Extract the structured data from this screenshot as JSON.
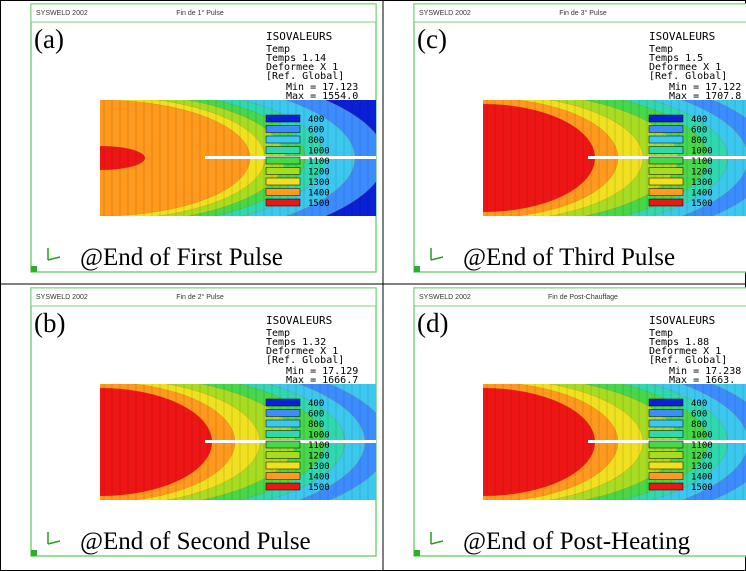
{
  "header_logo": "SYSWELD 2002",
  "isovaleurs": "ISOVALEURS",
  "quantity": "Temp",
  "deformee": "Deformee X 1",
  "reference": "[Ref. Global]",
  "legend_levels": [
    "400",
    "600",
    "800",
    "1000",
    "1100",
    "1200",
    "1300",
    "1400",
    "1500"
  ],
  "panels": [
    {
      "label": "(a)",
      "title": "Fin de 1° Pulse",
      "time": "Temps 1.14",
      "min": "Min = 17.123",
      "max": "Max = 1554.0",
      "caption": "@End of First Pulse"
    },
    {
      "label": "(c)",
      "title": "Fin de 3° Pulse",
      "time": "Temps 1.5",
      "min": "Min = 17.122",
      "max": "Max = 1707.8",
      "caption": "@End of Third Pulse"
    },
    {
      "label": "(b)",
      "title": "Fin de 2° Pulse",
      "time": "Temps 1.32",
      "min": "Min = 17.129",
      "max": "Max = 1666.7",
      "caption": "@End of Second Pulse"
    },
    {
      "label": "(d)",
      "title": "Fin de Post-Chauffage",
      "time": "Temps 1.88",
      "min": "Min = 17.238",
      "max": "Max = 1663.",
      "caption": "@End of Post-Heating"
    }
  ]
}
